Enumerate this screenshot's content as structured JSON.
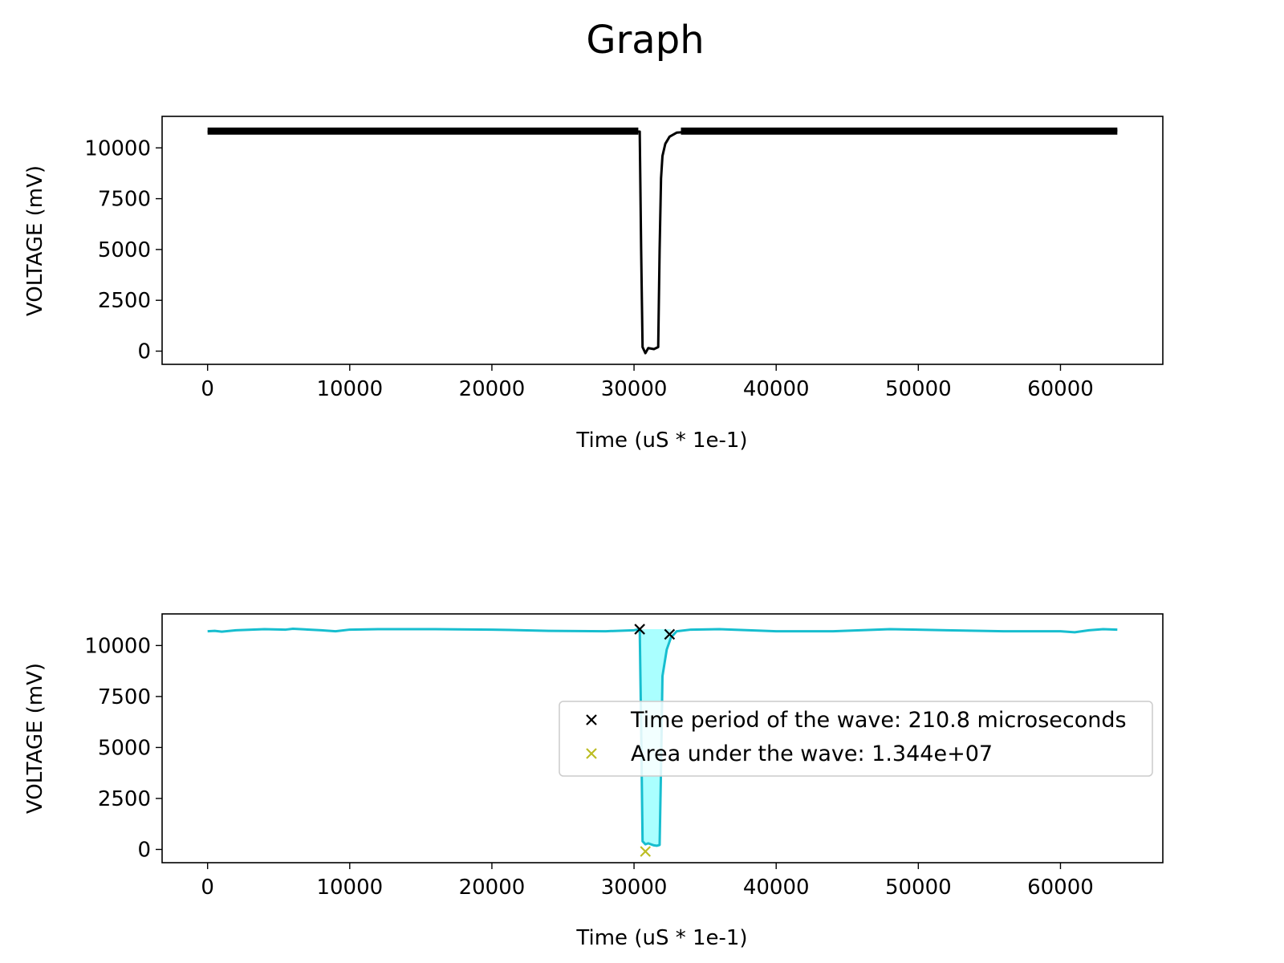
{
  "figure": {
    "title": "Graph"
  },
  "chart_data": [
    {
      "type": "line",
      "id": "top",
      "xlabel": "Time (uS * 1e-1)",
      "ylabel": "VOLTAGE (mV)",
      "xlim": [
        -3200,
        67200
      ],
      "ylim": [
        -650,
        11550
      ],
      "xticks": [
        0,
        10000,
        20000,
        30000,
        40000,
        50000,
        60000
      ],
      "yticks": [
        0,
        2500,
        5000,
        7500,
        10000
      ],
      "series": [
        {
          "color": "#000000",
          "noise_band": [
            10650,
            11000
          ],
          "x": [
            0,
            5000,
            10000,
            15000,
            20000,
            25000,
            30000,
            30400,
            30500,
            30600,
            30800,
            31000,
            31400,
            31700,
            31800,
            31900,
            32000,
            32200,
            32500,
            33000,
            34000,
            36000,
            40000,
            45000,
            50000,
            55000,
            60000,
            64000
          ],
          "y": [
            10800,
            10800,
            10800,
            10800,
            10800,
            10800,
            10800,
            10800,
            5000,
            200,
            -100,
            150,
            100,
            200,
            5000,
            8500,
            9600,
            10200,
            10550,
            10750,
            10800,
            10800,
            10800,
            10800,
            10800,
            10800,
            10800,
            10850
          ]
        }
      ]
    },
    {
      "type": "line",
      "id": "bottom",
      "xlabel": "Time (uS * 1e-1)",
      "ylabel": "VOLTAGE (mV)",
      "xlim": [
        -3200,
        67200
      ],
      "ylim": [
        -650,
        11550
      ],
      "xticks": [
        0,
        10000,
        20000,
        30000,
        40000,
        50000,
        60000
      ],
      "yticks": [
        0,
        2500,
        5000,
        7500,
        10000
      ],
      "legend_position": "center-right",
      "series": [
        {
          "color": "#17becf",
          "fill_color": "#aaffff",
          "fill_between_x": [
            30400,
            32600
          ],
          "fill_top": 10800,
          "x": [
            0,
            500,
            1000,
            2000,
            4000,
            5500,
            6000,
            8000,
            9000,
            10000,
            12000,
            16000,
            20000,
            24000,
            28000,
            30000,
            30400,
            30500,
            30600,
            30800,
            31000,
            31400,
            31600,
            31800,
            31900,
            32000,
            32300,
            32600,
            33000,
            34000,
            36000,
            40000,
            44000,
            48000,
            52000,
            56000,
            60000,
            61000,
            62000,
            63000,
            64000
          ],
          "y": [
            10700,
            10720,
            10680,
            10750,
            10800,
            10780,
            10820,
            10750,
            10700,
            10780,
            10800,
            10800,
            10780,
            10720,
            10700,
            10750,
            10800,
            6000,
            400,
            250,
            300,
            200,
            180,
            220,
            4000,
            8500,
            9800,
            10400,
            10700,
            10780,
            10800,
            10700,
            10700,
            10800,
            10750,
            10700,
            10700,
            10650,
            10750,
            10800,
            10780
          ]
        }
      ],
      "markers": [
        {
          "series": "period",
          "color": "#000000",
          "x": [
            30400,
            32500
          ],
          "y": [
            10800,
            10550
          ]
        },
        {
          "series": "area",
          "color": "#bcbd22",
          "x": [
            30800
          ],
          "y": [
            -100
          ]
        }
      ],
      "legend": [
        {
          "label": "Time period of the wave: 210.8 microseconds",
          "color": "#000000"
        },
        {
          "label": "Area under the wave: 1.344e+07",
          "color": "#bcbd22"
        }
      ]
    }
  ]
}
